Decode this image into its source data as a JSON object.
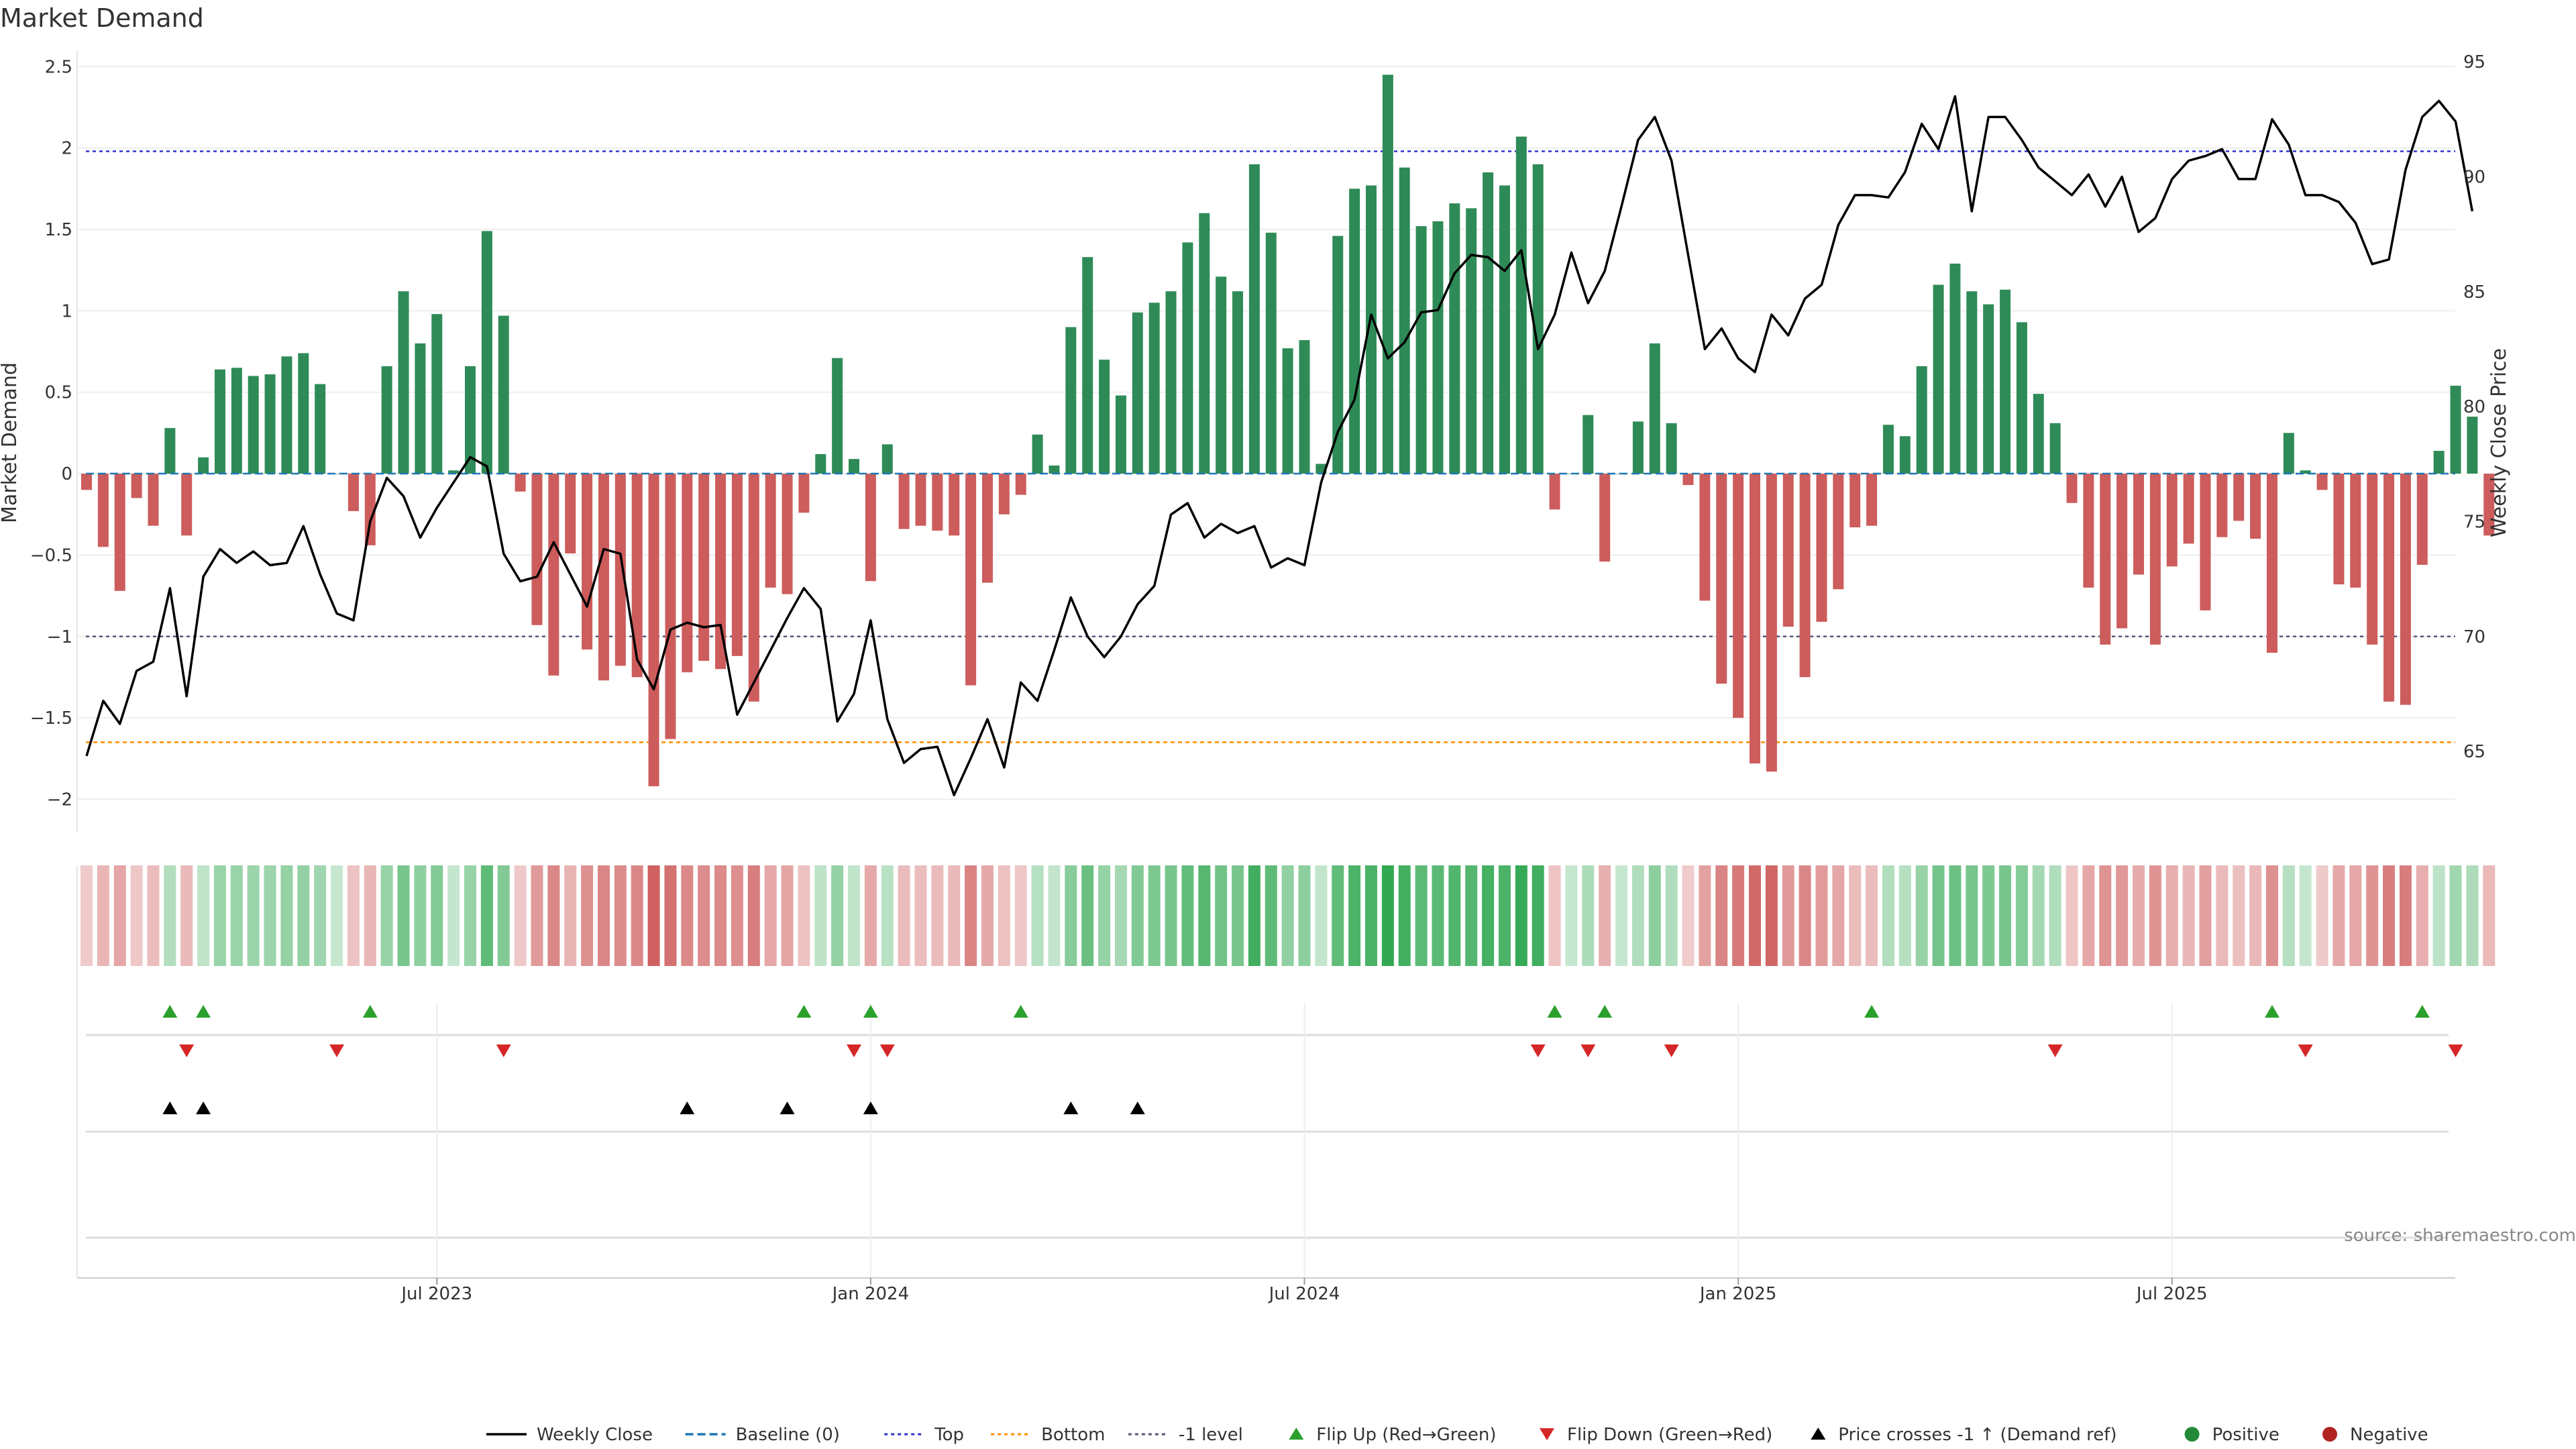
{
  "title": "Market Demand",
  "source_note": "source: sharemaestro.com",
  "colors": {
    "positive": "#2e8b57",
    "negative": "#cd5c5c",
    "flip_up": "#2ca02c",
    "flip_down": "#d62728",
    "cross": "#000000",
    "top_line": "#3333cc",
    "bottom_line": "#ff8c00",
    "minus1_line": "#555577",
    "baseline": "#1f77b4",
    "price": "#000000"
  },
  "chart_data": {
    "type": "bar+line",
    "title": "Market Demand",
    "ylabel": "Market Demand",
    "y2label": "Weekly Close Price",
    "ylim": [
      -2.2,
      2.6
    ],
    "y2lim": [
      61.5,
      95.5
    ],
    "yticks": [
      -2,
      -1.5,
      -1,
      -0.5,
      0,
      0.5,
      1,
      1.5,
      2,
      2.5
    ],
    "ytick_labels": [
      "−2",
      "−1.5",
      "−1",
      "−0.5",
      "0",
      "0.5",
      "1",
      "1.5",
      "2",
      "2.5"
    ],
    "y2ticks": [
      65,
      70,
      75,
      80,
      85,
      90,
      95
    ],
    "y2tick_labels": [
      "65",
      "70",
      "75",
      "80",
      "85",
      "90",
      "95"
    ],
    "xticks": [
      {
        "label": "Jul 2023",
        "week": 21
      },
      {
        "label": "Jan 2024",
        "week": 47
      },
      {
        "label": "Jul 2024",
        "week": 73
      },
      {
        "label": "Jan 2025",
        "week": 99
      },
      {
        "label": "Jul 2025",
        "week": 125
      }
    ],
    "levels": {
      "top": 1.98,
      "bottom": -1.65,
      "minus1": -1.0,
      "baseline": 0
    },
    "demand": [
      -0.1,
      -0.45,
      -0.72,
      -0.15,
      -0.32,
      0.28,
      -0.38,
      0.1,
      0.64,
      0.65,
      0.6,
      0.61,
      0.72,
      0.74,
      0.55,
      0.0,
      -0.23,
      -0.44,
      0.66,
      1.12,
      0.8,
      0.98,
      0.02,
      0.66,
      1.49,
      0.97,
      -0.11,
      -0.93,
      -1.24,
      -0.49,
      -1.08,
      -1.27,
      -1.18,
      -1.25,
      -1.92,
      -1.63,
      -1.22,
      -1.15,
      -1.2,
      -1.12,
      -1.4,
      -0.7,
      -0.74,
      -0.24,
      0.12,
      0.71,
      0.09,
      -0.66,
      0.18,
      -0.34,
      -0.32,
      -0.35,
      -0.38,
      -1.3,
      -0.67,
      -0.25,
      -0.13,
      0.24,
      0.05,
      0.9,
      1.33,
      0.7,
      0.48,
      0.99,
      1.05,
      1.12,
      1.42,
      1.6,
      1.21,
      1.12,
      1.9,
      1.48,
      0.77,
      0.82,
      0.06,
      1.46,
      1.75,
      1.77,
      2.45,
      1.88,
      1.52,
      1.55,
      1.66,
      1.63,
      1.85,
      1.77,
      2.07,
      1.9,
      -0.22,
      0.0,
      0.36,
      -0.54,
      0.0,
      0.32,
      0.8,
      0.31,
      -0.07,
      -0.78,
      -1.29,
      -1.5,
      -1.78,
      -1.83,
      -0.94,
      -1.25,
      -0.91,
      -0.71,
      -0.33,
      -0.32,
      0.3,
      0.23,
      0.66,
      1.16,
      1.29,
      1.12,
      1.04,
      1.13,
      0.93,
      0.49,
      0.31,
      -0.18,
      -0.7,
      -1.05,
      -0.95,
      -0.62,
      -1.05,
      -0.57,
      -0.43,
      -0.84,
      -0.39,
      -0.29,
      -0.4,
      -1.1,
      0.25,
      0.02,
      -0.1,
      -0.68,
      -0.7,
      -1.05,
      -1.4,
      -1.42,
      -0.56,
      0.14,
      0.54,
      0.35,
      -0.38
    ],
    "price": [
      64.8,
      67.2,
      66.2,
      68.5,
      68.9,
      72.1,
      67.4,
      72.6,
      73.8,
      73.2,
      73.7,
      73.1,
      73.2,
      74.8,
      72.7,
      71.0,
      70.7,
      75.0,
      76.9,
      76.1,
      74.3,
      75.6,
      76.7,
      77.8,
      77.4,
      73.6,
      72.4,
      72.6,
      74.1,
      72.7,
      71.3,
      73.8,
      73.6,
      69.0,
      67.7,
      70.3,
      70.6,
      70.4,
      70.5,
      66.6,
      68.0,
      69.4,
      70.8,
      72.1,
      71.2,
      66.3,
      67.5,
      70.7,
      66.4,
      64.5,
      65.1,
      65.2,
      63.1,
      64.7,
      66.4,
      64.3,
      68.0,
      67.2,
      69.4,
      71.7,
      70.0,
      69.1,
      70.0,
      71.4,
      72.2,
      75.3,
      75.8,
      74.3,
      74.9,
      74.5,
      74.8,
      73.0,
      73.4,
      73.1,
      76.7,
      78.9,
      80.3,
      84.0,
      82.1,
      82.8,
      84.1,
      84.2,
      85.8,
      86.6,
      86.5,
      85.9,
      86.8,
      82.5,
      84.0,
      86.7,
      84.5,
      85.9,
      88.7,
      91.6,
      92.6,
      90.7,
      86.6,
      82.5,
      83.4,
      82.1,
      81.5,
      84.0,
      83.1,
      84.7,
      85.3,
      87.9,
      89.2,
      89.2,
      89.1,
      90.2,
      92.3,
      91.2,
      93.5,
      88.5,
      92.6,
      92.6,
      91.6,
      90.4,
      89.8,
      89.2,
      90.1,
      88.7,
      90.0,
      87.6,
      88.2,
      89.9,
      90.7,
      90.9,
      91.2,
      89.9,
      89.9,
      92.5,
      91.4,
      89.2,
      89.2,
      88.9,
      88.0,
      86.2,
      86.4,
      90.3,
      92.6,
      93.3,
      92.4,
      88.5
    ],
    "band_values": [
      -0.1,
      -0.45,
      -0.72,
      -0.15,
      -0.32,
      0.28,
      -0.38,
      0.1,
      0.64,
      0.65,
      0.6,
      0.61,
      0.72,
      0.74,
      0.55,
      0.0,
      -0.23,
      -0.44,
      0.66,
      1.12,
      0.8,
      0.98,
      0.02,
      0.66,
      1.49,
      0.97,
      -0.11,
      -0.93,
      -1.24,
      -0.49,
      -1.08,
      -1.27,
      -1.18,
      -1.25,
      -1.92,
      -1.63,
      -1.22,
      -1.15,
      -1.2,
      -1.12,
      -1.4,
      -0.7,
      -0.74,
      -0.24,
      0.12,
      0.71,
      0.09,
      -0.66,
      0.18,
      -0.34,
      -0.32,
      -0.35,
      -0.38,
      -1.3,
      -0.67,
      -0.25,
      -0.13,
      0.24,
      0.05,
      0.9,
      1.33,
      0.7,
      0.48,
      0.99,
      1.05,
      1.12,
      1.42,
      1.6,
      1.21,
      1.12,
      1.9,
      1.48,
      0.77,
      0.82,
      0.06,
      1.46,
      1.75,
      1.77,
      2.45,
      1.88,
      1.52,
      1.55,
      1.66,
      1.63,
      1.85,
      1.77,
      2.07,
      1.9,
      -0.22,
      0.0,
      0.36,
      -0.54,
      0.0,
      0.32,
      0.8,
      0.31,
      -0.07,
      -0.78,
      -1.29,
      -1.5,
      -1.78,
      -1.83,
      -0.94,
      -1.25,
      -0.91,
      -0.71,
      -0.33,
      -0.32,
      0.3,
      0.23,
      0.66,
      1.16,
      1.29,
      1.12,
      1.04,
      1.13,
      0.93,
      0.49,
      0.31,
      -0.18,
      -0.7,
      -1.05,
      -0.95,
      -0.62,
      -1.05,
      -0.57,
      -0.43,
      -0.84,
      -0.39,
      -0.29,
      -0.4,
      -1.1,
      0.25,
      0.02,
      -0.1,
      -0.68,
      -0.7,
      -1.05,
      -1.4,
      -1.42,
      -0.56,
      0.14,
      0.54,
      0.35,
      -0.38
    ],
    "flip_up_weeks": [
      5,
      7,
      17,
      43,
      47,
      56,
      88,
      91,
      107,
      131,
      140
    ],
    "flip_down_weeks": [
      6,
      15,
      25,
      46,
      48,
      87,
      90,
      95,
      118,
      133,
      142
    ],
    "price_cross_weeks": [
      5,
      7,
      36,
      42,
      47,
      59,
      63
    ]
  },
  "legend": [
    {
      "key": "weekly_close",
      "label": "Weekly Close",
      "marker": "line-solid"
    },
    {
      "key": "baseline",
      "label": "Baseline (0)",
      "marker": "line-dashed"
    },
    {
      "key": "top",
      "label": "Top",
      "marker": "line-dotted"
    },
    {
      "key": "bottom",
      "label": "Bottom",
      "marker": "line-dotted"
    },
    {
      "key": "minus1",
      "label": "-1 level",
      "marker": "line-dotted"
    },
    {
      "key": "flip_up",
      "label": "Flip Up (Red→Green)",
      "marker": "triangle-up"
    },
    {
      "key": "flip_down",
      "label": "Flip Down (Green→Red)",
      "marker": "triangle-down"
    },
    {
      "key": "price_cross",
      "label": "Price crosses -1 ↑ (Demand ref)",
      "marker": "triangle-up"
    },
    {
      "key": "positive",
      "label": "Positive",
      "marker": "dot"
    },
    {
      "key": "negative",
      "label": "Negative",
      "marker": "dot"
    }
  ]
}
